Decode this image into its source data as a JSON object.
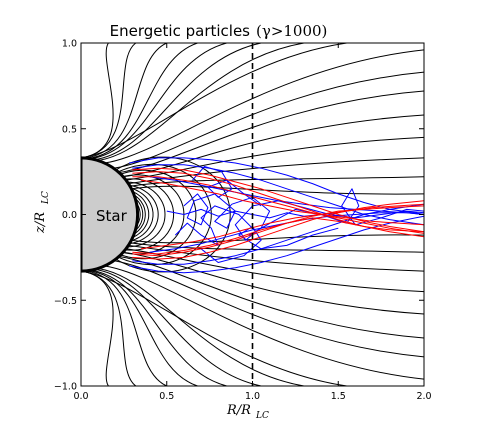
{
  "chart_data": {
    "type": "line",
    "title": {
      "text": "Energetic particles",
      "math": "(γ>1000)"
    },
    "xlabel": {
      "main": "R/R",
      "sub": "LC"
    },
    "ylabel": {
      "main": "z/R",
      "sub": "LC"
    },
    "xlim": [
      0.0,
      2.0
    ],
    "ylim": [
      -1.0,
      1.0
    ],
    "xticks": [
      "0.0",
      "0.5",
      "1.0",
      "1.5",
      "2.0"
    ],
    "yticks": [
      "−1.0",
      "−0.5",
      "0.0",
      "0.5",
      "1.0"
    ],
    "xtick_values": [
      0.0,
      0.5,
      1.0,
      1.5,
      2.0
    ],
    "ytick_values": [
      -1.0,
      -0.5,
      0.0,
      0.5,
      1.0
    ],
    "grid": false,
    "star": {
      "label": "Star",
      "radius": 0.33,
      "fill": "#cccccc",
      "edge": "#000000"
    },
    "light_cylinder": {
      "x": 1.0,
      "style": "dashed",
      "color": "#000000"
    },
    "field_lines": {
      "color": "#000000",
      "closed": [
        0.335,
        0.345,
        0.36,
        0.375,
        0.395,
        0.42,
        0.45,
        0.49,
        0.54,
        0.6,
        0.67,
        0.76,
        0.87
      ],
      "open": [
        {
          "z0": 0.33,
          "xe": 1.55,
          "ye": 1.0
        },
        {
          "z0": 0.3,
          "xe": 2.0,
          "ye": 0.96
        },
        {
          "z0": 0.27,
          "xe": 2.0,
          "ye": 0.83
        },
        {
          "z0": 0.245,
          "xe": 2.0,
          "ye": 0.72
        },
        {
          "z0": 0.22,
          "xe": 2.0,
          "ye": 0.58
        },
        {
          "z0": 0.2,
          "xe": 2.0,
          "ye": 0.45
        },
        {
          "z0": 0.18,
          "xe": 2.0,
          "ye": 0.33
        },
        {
          "z0": 0.165,
          "xe": 2.0,
          "ye": 0.22
        },
        {
          "z0": 0.15,
          "xe": 2.0,
          "ye": 0.12
        },
        {
          "z0": 0.315,
          "xe": 1.3,
          "ye": 1.0
        },
        {
          "z0": 0.32,
          "xe": 1.05,
          "ye": 1.0
        },
        {
          "z0": 0.325,
          "xe": 0.85,
          "ye": 1.0
        },
        {
          "z0": 0.327,
          "xe": 0.68,
          "ye": 1.0
        },
        {
          "z0": 0.329,
          "xe": 0.5,
          "ye": 1.0
        },
        {
          "z0": 0.33,
          "xe": 0.32,
          "ye": 1.0
        },
        {
          "z0": 0.33,
          "xe": 0.16,
          "ye": 1.0
        }
      ]
    },
    "series": [
      {
        "color": "#0000ff",
        "tracks": [
          {
            "x": [
              0.28,
              0.45,
              0.6,
              0.75,
              0.9,
              1.05,
              1.2,
              1.35,
              1.5,
              1.65,
              1.8,
              1.95,
              2.0
            ],
            "y": [
              0.3,
              0.33,
              0.33,
              0.32,
              0.3,
              0.27,
              0.23,
              0.18,
              0.12,
              0.07,
              0.03,
              0.01,
              0.0
            ]
          },
          {
            "x": [
              0.3,
              0.45,
              0.6,
              0.75,
              0.9,
              1.05,
              1.2,
              1.35,
              1.5,
              1.65,
              1.8,
              2.0
            ],
            "y": [
              0.27,
              0.29,
              0.29,
              0.27,
              0.24,
              0.2,
              0.15,
              0.1,
              0.05,
              0.0,
              -0.03,
              -0.06
            ]
          },
          {
            "x": [
              0.3,
              0.45,
              0.6,
              0.75,
              0.9,
              1.05,
              1.2,
              1.35,
              1.5,
              1.65,
              1.8,
              2.0
            ],
            "y": [
              -0.27,
              -0.29,
              -0.29,
              -0.27,
              -0.24,
              -0.2,
              -0.15,
              -0.1,
              -0.05,
              0.0,
              0.03,
              0.06
            ]
          },
          {
            "x": [
              0.28,
              0.45,
              0.6,
              0.75,
              0.9,
              1.05,
              1.2,
              1.35,
              1.5,
              1.65,
              1.8,
              1.95,
              2.0
            ],
            "y": [
              -0.3,
              -0.33,
              -0.34,
              -0.33,
              -0.31,
              -0.28,
              -0.24,
              -0.19,
              -0.14,
              -0.09,
              -0.05,
              -0.02,
              -0.01
            ]
          },
          {
            "x": [
              0.6,
              0.68,
              0.74,
              0.7,
              0.62,
              0.66,
              0.78,
              0.9,
              0.85,
              0.78,
              0.88,
              1.0,
              1.1,
              1.05,
              0.98,
              1.12,
              1.25,
              1.4,
              1.55,
              1.62,
              1.58,
              1.52,
              1.6,
              1.75,
              1.9,
              2.0
            ],
            "y": [
              0.05,
              0.12,
              0.04,
              -0.06,
              -0.02,
              0.08,
              0.12,
              0.02,
              -0.08,
              -0.04,
              0.06,
              0.1,
              0.02,
              -0.08,
              -0.12,
              -0.04,
              0.03,
              0.0,
              -0.05,
              0.05,
              0.15,
              0.05,
              -0.06,
              -0.02,
              0.03,
              0.02
            ]
          },
          {
            "x": [
              0.55,
              0.62,
              0.7,
              0.8,
              0.76,
              0.7,
              0.78,
              0.92,
              1.02,
              0.96,
              0.9,
              1.0,
              1.15,
              1.3,
              1.45,
              1.6,
              1.75,
              1.9,
              2.0
            ],
            "y": [
              -0.12,
              -0.05,
              -0.12,
              -0.18,
              -0.08,
              -0.02,
              0.05,
              0.0,
              -0.1,
              -0.15,
              -0.06,
              0.05,
              0.08,
              0.04,
              0.0,
              -0.02,
              0.0,
              0.02,
              0.01
            ]
          },
          {
            "x": [
              0.4,
              0.55,
              0.7,
              0.85,
              1.0,
              1.15,
              1.3,
              1.45,
              1.6,
              1.75,
              1.9,
              2.0
            ],
            "y": [
              0.22,
              0.2,
              0.17,
              0.14,
              0.11,
              0.08,
              0.06,
              0.04,
              0.03,
              0.02,
              0.01,
              0.0
            ]
          },
          {
            "x": [
              0.4,
              0.55,
              0.7,
              0.85,
              1.0,
              1.15,
              1.3,
              1.45,
              1.6,
              1.75,
              1.9,
              2.0
            ],
            "y": [
              -0.22,
              -0.2,
              -0.17,
              -0.13,
              -0.09,
              -0.06,
              -0.03,
              -0.01,
              0.0,
              0.01,
              0.01,
              0.0
            ]
          },
          {
            "x": [
              0.65,
              0.72,
              0.82,
              0.88,
              0.8,
              0.74,
              0.85,
              0.95,
              1.05
            ],
            "y": [
              0.2,
              0.28,
              0.25,
              0.15,
              0.1,
              0.16,
              0.2,
              0.12,
              0.05
            ]
          },
          {
            "x": [
              0.7,
              0.8,
              0.95,
              1.05,
              1.0,
              0.92,
              1.05,
              1.2,
              1.35,
              1.5
            ],
            "y": [
              -0.2,
              -0.28,
              -0.24,
              -0.15,
              -0.07,
              -0.12,
              -0.2,
              -0.18,
              -0.12,
              -0.08
            ]
          },
          {
            "x": [
              0.5,
              0.6,
              0.7,
              0.8,
              0.9,
              1.0,
              1.1,
              1.2,
              1.3,
              1.4,
              1.5
            ],
            "y": [
              0.02,
              0.0,
              0.03,
              -0.01,
              0.02,
              0.0,
              -0.02,
              0.01,
              -0.01,
              0.0,
              0.01
            ]
          }
        ]
      },
      {
        "color": "#ff0000",
        "tracks": [
          {
            "x": [
              0.3,
              0.45,
              0.6,
              0.75,
              0.9,
              1.05,
              1.2,
              1.35,
              1.5,
              1.65,
              1.8,
              2.0
            ],
            "y": [
              0.26,
              0.27,
              0.26,
              0.23,
              0.19,
              0.15,
              0.1,
              0.05,
              0.0,
              -0.04,
              -0.07,
              -0.1
            ]
          },
          {
            "x": [
              0.3,
              0.45,
              0.6,
              0.75,
              0.9,
              1.05,
              1.2,
              1.35,
              1.5,
              1.65,
              1.8,
              2.0
            ],
            "y": [
              0.24,
              0.25,
              0.24,
              0.21,
              0.17,
              0.12,
              0.07,
              0.02,
              -0.03,
              -0.07,
              -0.1,
              -0.13
            ]
          },
          {
            "x": [
              0.3,
              0.45,
              0.6,
              0.75,
              0.9,
              1.05,
              1.2,
              1.35,
              1.5,
              1.65,
              1.8,
              2.0
            ],
            "y": [
              0.22,
              0.22,
              0.2,
              0.17,
              0.13,
              0.09,
              0.05,
              0.01,
              -0.02,
              -0.05,
              -0.08,
              -0.11
            ]
          },
          {
            "x": [
              0.3,
              0.45,
              0.6,
              0.75,
              0.9,
              1.05,
              1.2,
              1.35,
              1.5,
              1.65,
              1.8,
              2.0
            ],
            "y": [
              -0.25,
              -0.26,
              -0.25,
              -0.22,
              -0.18,
              -0.13,
              -0.08,
              -0.03,
              0.01,
              0.04,
              0.06,
              0.08
            ]
          },
          {
            "x": [
              0.3,
              0.45,
              0.6,
              0.75,
              0.9,
              1.05,
              1.2,
              1.35,
              1.5,
              1.65,
              1.8,
              2.0
            ],
            "y": [
              -0.23,
              -0.24,
              -0.22,
              -0.19,
              -0.15,
              -0.1,
              -0.05,
              -0.01,
              0.02,
              0.03,
              0.04,
              0.05
            ]
          },
          {
            "x": [
              0.3,
              0.45,
              0.6,
              0.75,
              0.9,
              1.05,
              1.2,
              1.35,
              1.5,
              1.65,
              1.8,
              2.0
            ],
            "y": [
              -0.22,
              -0.23,
              -0.21,
              -0.18,
              -0.14,
              -0.09,
              -0.05,
              -0.02,
              -0.04,
              -0.07,
              -0.09,
              -0.1
            ]
          },
          {
            "x": [
              0.35,
              0.5,
              0.65,
              0.8,
              0.95,
              1.1,
              1.25,
              1.4,
              1.55,
              1.7,
              1.85,
              2.0
            ],
            "y": [
              0.2,
              0.18,
              0.15,
              0.12,
              0.08,
              0.05,
              0.02,
              0.0,
              -0.02,
              -0.04,
              -0.05,
              -0.06
            ]
          },
          {
            "x": [
              0.35,
              0.5,
              0.65,
              0.8,
              0.95,
              1.1,
              1.25,
              1.4,
              1.55,
              1.7,
              1.85,
              2.0
            ],
            "y": [
              -0.2,
              -0.18,
              -0.16,
              -0.13,
              -0.09,
              -0.05,
              -0.02,
              0.0,
              0.02,
              0.04,
              0.05,
              0.06
            ]
          }
        ]
      }
    ]
  }
}
